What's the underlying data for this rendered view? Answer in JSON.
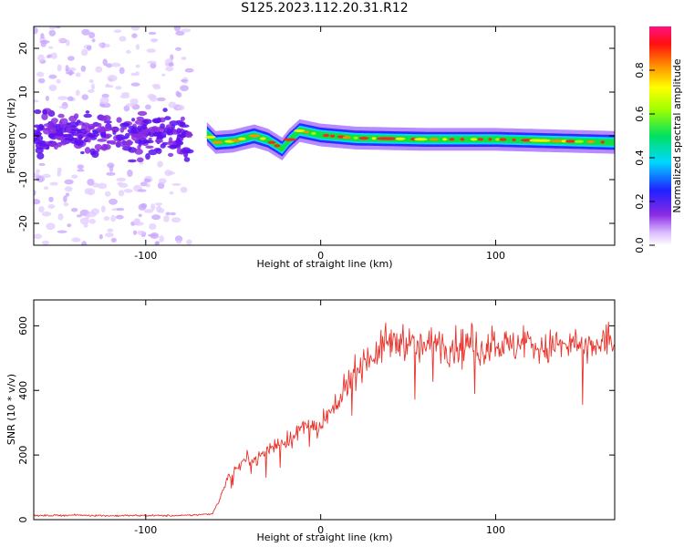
{
  "title": "S125.2023.112.20.31.R12",
  "colors": {
    "snr_line": "#e8322a",
    "spectro_cool": "#7a2cff",
    "spectro_core": "#2020ff"
  },
  "chart_data": [
    {
      "type": "heatmap",
      "title": "S125.2023.112.20.31.R12",
      "xlabel": "Height of straight line (km)",
      "ylabel": "Frequency (Hz)",
      "xlim": [
        -164,
        168
      ],
      "ylim": [
        -25,
        25
      ],
      "x_ticks": [
        -100,
        0,
        100
      ],
      "x_tick_labels": [
        "-100",
        "0",
        "100"
      ],
      "y_ticks": [
        -20,
        -10,
        0,
        10,
        20
      ],
      "y_tick_labels": [
        "-20",
        "-10",
        "0",
        "10",
        "20"
      ],
      "noise_region_km": [
        -164,
        -75
      ],
      "signal_track": [
        {
          "x": -65,
          "f": 0.5
        },
        {
          "x": -60,
          "f": -1.5
        },
        {
          "x": -50,
          "f": -1.2
        },
        {
          "x": -38,
          "f": 0.0
        },
        {
          "x": -30,
          "f": -1.0
        },
        {
          "x": -22,
          "f": -3.0
        },
        {
          "x": -18,
          "f": -1.0
        },
        {
          "x": -12,
          "f": 1.2
        },
        {
          "x": 0,
          "f": 0.2
        },
        {
          "x": 20,
          "f": -0.5
        },
        {
          "x": 60,
          "f": -0.8
        },
        {
          "x": 100,
          "f": -0.8
        },
        {
          "x": 168,
          "f": -1.5
        }
      ],
      "colorbar": {
        "label": "Normalized spectral amplitude",
        "range": [
          0.0,
          1.0
        ],
        "ticks": [
          0.0,
          0.2,
          0.4,
          0.6,
          0.8
        ],
        "tick_labels": [
          "0.0",
          "0.2",
          "0.4",
          "0.6",
          "0.8"
        ]
      }
    },
    {
      "type": "line",
      "xlabel": "Height of straight line (km)",
      "ylabel": "SNR (10 * v/v)",
      "xlim": [
        -164,
        168
      ],
      "ylim": [
        0,
        680
      ],
      "x_ticks": [
        -100,
        0,
        100
      ],
      "x_tick_labels": [
        "-100",
        "0",
        "100"
      ],
      "y_ticks": [
        0,
        200,
        400,
        600
      ],
      "y_tick_labels": [
        "0",
        "200",
        "400",
        "600"
      ],
      "series": [
        {
          "name": "SNR",
          "x": [
            -164,
            -140,
            -120,
            -100,
            -80,
            -62,
            -58,
            -54,
            -50,
            -46,
            -42,
            -38,
            -34,
            -30,
            -26,
            -22,
            -18,
            -14,
            -10,
            -6,
            -2,
            2,
            6,
            10,
            14,
            18,
            22,
            26,
            30,
            34,
            38,
            42,
            46,
            50,
            56,
            62,
            68,
            74,
            80,
            86,
            92,
            98,
            104,
            110,
            116,
            122,
            128,
            134,
            140,
            146,
            152,
            158,
            164,
            168
          ],
          "y": [
            12,
            14,
            12,
            13,
            12,
            18,
            60,
            120,
            150,
            170,
            190,
            180,
            200,
            220,
            230,
            240,
            250,
            260,
            290,
            300,
            260,
            310,
            330,
            350,
            420,
            450,
            470,
            500,
            510,
            520,
            560,
            540,
            560,
            550,
            530,
            540,
            555,
            530,
            540,
            550,
            520,
            560,
            540,
            530,
            560,
            540,
            520,
            545,
            530,
            550,
            520,
            540,
            560,
            530
          ]
        }
      ]
    }
  ]
}
